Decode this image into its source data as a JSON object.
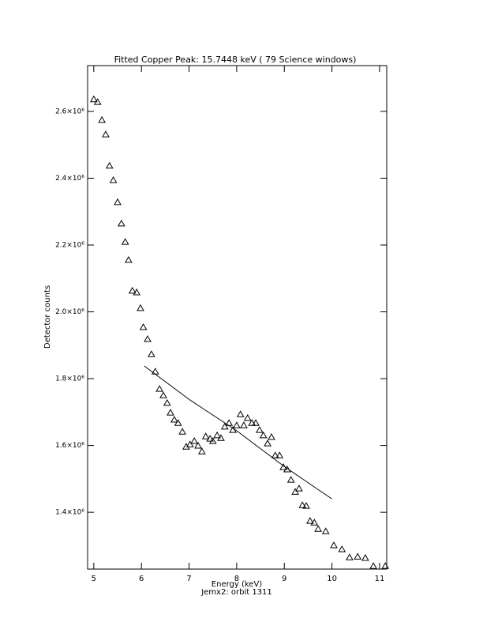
{
  "chart_data": {
    "type": "scatter",
    "title": "Fitted Copper Peak:       15.7448 keV (      79 Science windows)",
    "x_label": "Energy (keV)",
    "subtitle": "Jemx2: orbit 1311",
    "y_label": "Detector counts",
    "xlim": [
      4.87,
      11.15
    ],
    "ylim": [
      1230000,
      2737000
    ],
    "xticks": [
      5,
      6,
      7,
      8,
      9,
      10,
      11
    ],
    "yticks": [
      {
        "value": 1400000,
        "label": "1.4×10⁶"
      },
      {
        "value": 1600000,
        "label": "1.6×10⁶"
      },
      {
        "value": 1800000,
        "label": "1.8×10⁶"
      },
      {
        "value": 2000000,
        "label": "2.0×10⁶"
      },
      {
        "value": 2200000,
        "label": "2.2×10⁶"
      },
      {
        "value": 2400000,
        "label": "2.4×10⁶"
      },
      {
        "value": 2600000,
        "label": "2.6×10⁶"
      }
    ],
    "series": [
      {
        "marker": "triangle",
        "color": "#000000",
        "x": [
          5.0,
          5.08,
          5.17,
          5.25,
          5.33,
          5.41,
          5.5,
          5.58,
          5.66,
          5.73,
          5.81,
          5.9,
          5.98,
          6.04,
          6.13,
          6.21,
          6.29,
          6.38,
          6.46,
          6.54,
          6.61,
          6.69,
          6.77,
          6.86,
          6.94,
          7.02,
          7.11,
          7.19,
          7.27,
          7.35,
          7.44,
          7.5,
          7.59,
          7.67,
          7.75,
          7.84,
          7.92,
          8.0,
          8.08,
          8.15,
          8.23,
          8.32,
          8.4,
          8.48,
          8.56,
          8.65,
          8.73,
          8.81,
          8.9,
          8.98,
          9.06,
          9.14,
          9.23,
          9.31,
          9.38,
          9.46,
          9.54,
          9.63,
          9.71,
          9.87,
          10.04,
          10.21,
          10.37,
          10.54,
          10.7,
          10.87,
          11.12
        ],
        "values": [
          2636000,
          2628000,
          2574000,
          2531000,
          2437000,
          2394000,
          2328000,
          2264000,
          2209000,
          2155000,
          2063000,
          2058000,
          2011000,
          1954000,
          1918000,
          1873000,
          1821000,
          1769000,
          1750000,
          1727000,
          1698000,
          1677000,
          1667000,
          1641000,
          1596000,
          1603000,
          1613000,
          1599000,
          1582000,
          1627000,
          1620000,
          1613000,
          1630000,
          1622000,
          1656000,
          1667000,
          1646000,
          1660000,
          1693000,
          1660000,
          1682000,
          1667000,
          1667000,
          1646000,
          1630000,
          1606000,
          1625000,
          1570000,
          1570000,
          1535000,
          1528000,
          1497000,
          1461000,
          1471000,
          1421000,
          1419000,
          1374000,
          1369000,
          1350000,
          1343000,
          1301000,
          1289000,
          1265000,
          1267000,
          1263000,
          1239000,
          1239000
        ]
      },
      {
        "marker": "none",
        "color": "#000000",
        "x": [
          6.06,
          7.0,
          8.0,
          9.0,
          10.0
        ],
        "values": [
          1838000,
          1738000,
          1644000,
          1537000,
          1440000
        ]
      }
    ]
  }
}
